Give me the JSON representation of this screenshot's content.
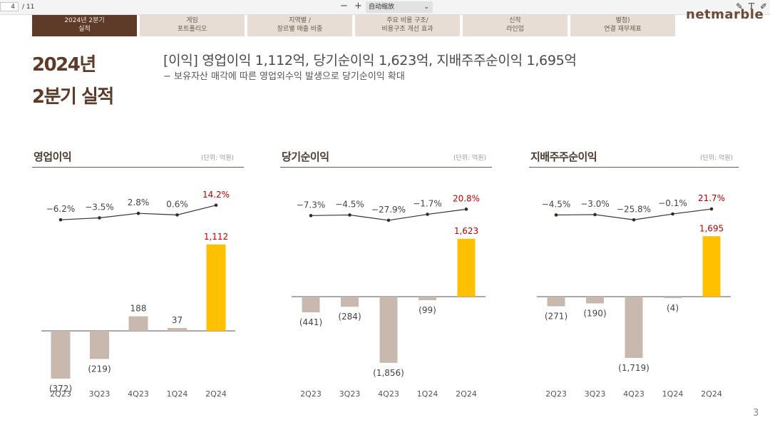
{
  "viewer": {
    "page_current": "4",
    "page_total": "/ 11",
    "zoom_out": "−",
    "zoom_in": "+",
    "zoom_mode": "自动缩放"
  },
  "tabs": [
    {
      "line1": "2024년 2분기",
      "line2": "실적"
    },
    {
      "line1": "게임",
      "line2": "포트폴리오"
    },
    {
      "line1": "지역별 /",
      "line2": "장르별 매출 비중"
    },
    {
      "line1": "주요 비용 구조/",
      "line2": "비용구조 개선 효과"
    },
    {
      "line1": "신작",
      "line2": "라인업"
    },
    {
      "line1": "별첨)",
      "line2": "연결 재무제표"
    }
  ],
  "logo": "netmarble",
  "title": {
    "line1": "2024년",
    "line2": "2분기 실적"
  },
  "headline": "[이익] 영업이익 1,112억,  당기순이익 1,623억, 지배주주순이익 1,695억",
  "subline": "− 보유자산 매각에 따른 영업외수익 발생으로 당기순이익 확대",
  "page_number": "3",
  "colors": {
    "brand": "#5e3b28",
    "bar": "#c8b8ad",
    "highlight_bar": "#ffc000",
    "highlight_text": "#c00000",
    "line": "#333333"
  },
  "chart_data": [
    {
      "type": "bar",
      "title": "영업이익",
      "unit": "(단위: 억원)",
      "categories": [
        "2Q23",
        "3Q23",
        "4Q23",
        "1Q24",
        "2Q24"
      ],
      "values": [
        -372,
        -219,
        188,
        37,
        1112
      ],
      "value_labels": [
        "(372)",
        "(219)",
        "188",
        "37",
        "1,112"
      ],
      "line_series": {
        "values": [
          -6.2,
          -3.5,
          2.8,
          0.6,
          14.2
        ],
        "labels": [
          "−6.2%",
          "−3.5%",
          "2.8%",
          "0.6%",
          "14.2%"
        ]
      },
      "highlight_index": 4
    },
    {
      "type": "bar",
      "title": "당기순이익",
      "unit": "(단위: 억원)",
      "categories": [
        "2Q23",
        "3Q23",
        "4Q23",
        "1Q24",
        "2Q24"
      ],
      "values": [
        -441,
        -284,
        -1856,
        -99,
        1623
      ],
      "value_labels": [
        "(441)",
        "(284)",
        "(1,856)",
        "(99)",
        "1,623"
      ],
      "line_series": {
        "values": [
          -7.3,
          -4.5,
          -27.9,
          -1.7,
          20.8
        ],
        "labels": [
          "−7.3%",
          "−4.5%",
          "−27.9%",
          "−1.7%",
          "20.8%"
        ]
      },
      "highlight_index": 4
    },
    {
      "type": "bar",
      "title": "지배주주순이익",
      "unit": "(단위: 억원)",
      "categories": [
        "2Q23",
        "3Q23",
        "4Q23",
        "1Q24",
        "2Q24"
      ],
      "values": [
        -271,
        -190,
        -1719,
        -4,
        1695
      ],
      "value_labels": [
        "(271)",
        "(190)",
        "(1,719)",
        "(4)",
        "1,695"
      ],
      "line_series": {
        "values": [
          -4.5,
          -3.0,
          -25.8,
          -0.1,
          21.7
        ],
        "labels": [
          "−4.5%",
          "−3.0%",
          "−25.8%",
          "−0.1%",
          "21.7%"
        ]
      },
      "highlight_index": 4
    }
  ]
}
